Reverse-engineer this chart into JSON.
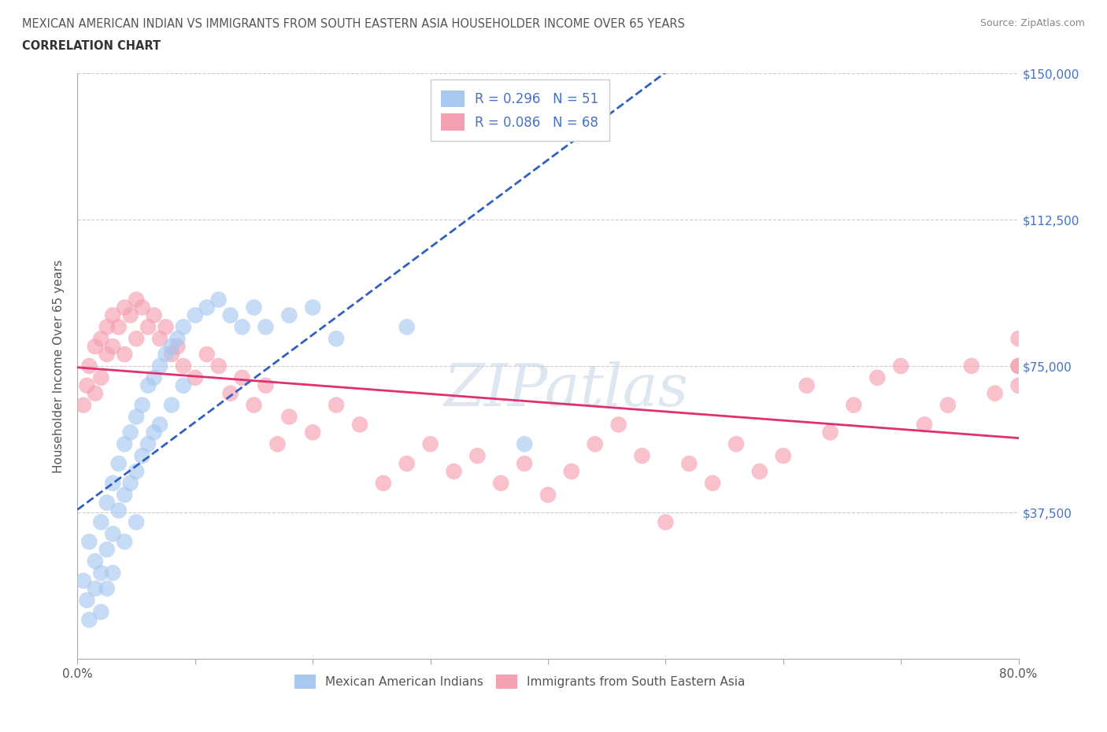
{
  "title_line1": "MEXICAN AMERICAN INDIAN VS IMMIGRANTS FROM SOUTH EASTERN ASIA HOUSEHOLDER INCOME OVER 65 YEARS",
  "title_line2": "CORRELATION CHART",
  "source": "Source: ZipAtlas.com",
  "ylabel": "Householder Income Over 65 years",
  "xlim": [
    0.0,
    0.8
  ],
  "ylim": [
    0,
    150000
  ],
  "yticks": [
    0,
    37500,
    75000,
    112500,
    150000
  ],
  "yticklabels_right": [
    "",
    "$37,500",
    "$75,000",
    "$112,500",
    "$150,000"
  ],
  "color_blue": "#a8c8f0",
  "color_pink": "#f5a0b0",
  "line_color_blue": "#3060c0",
  "line_color_pink": "#e03070",
  "watermark": "ZIPatlas",
  "blue_scatter_x": [
    0.005,
    0.008,
    0.01,
    0.01,
    0.015,
    0.015,
    0.02,
    0.02,
    0.02,
    0.025,
    0.025,
    0.025,
    0.03,
    0.03,
    0.03,
    0.035,
    0.035,
    0.04,
    0.04,
    0.04,
    0.045,
    0.045,
    0.05,
    0.05,
    0.05,
    0.055,
    0.055,
    0.06,
    0.06,
    0.065,
    0.065,
    0.07,
    0.07,
    0.075,
    0.08,
    0.08,
    0.085,
    0.09,
    0.09,
    0.1,
    0.11,
    0.12,
    0.13,
    0.14,
    0.15,
    0.16,
    0.18,
    0.2,
    0.22,
    0.28,
    0.38
  ],
  "blue_scatter_y": [
    20000,
    15000,
    30000,
    10000,
    25000,
    18000,
    35000,
    22000,
    12000,
    40000,
    28000,
    18000,
    45000,
    32000,
    22000,
    50000,
    38000,
    55000,
    42000,
    30000,
    58000,
    45000,
    62000,
    48000,
    35000,
    65000,
    52000,
    70000,
    55000,
    72000,
    58000,
    75000,
    60000,
    78000,
    80000,
    65000,
    82000,
    85000,
    70000,
    88000,
    90000,
    92000,
    88000,
    85000,
    90000,
    85000,
    88000,
    90000,
    82000,
    85000,
    55000
  ],
  "pink_scatter_x": [
    0.005,
    0.008,
    0.01,
    0.015,
    0.015,
    0.02,
    0.02,
    0.025,
    0.025,
    0.03,
    0.03,
    0.035,
    0.04,
    0.04,
    0.045,
    0.05,
    0.05,
    0.055,
    0.06,
    0.065,
    0.07,
    0.075,
    0.08,
    0.085,
    0.09,
    0.1,
    0.11,
    0.12,
    0.13,
    0.14,
    0.15,
    0.16,
    0.17,
    0.18,
    0.2,
    0.22,
    0.24,
    0.26,
    0.28,
    0.3,
    0.32,
    0.34,
    0.36,
    0.38,
    0.4,
    0.42,
    0.44,
    0.46,
    0.48,
    0.5,
    0.52,
    0.54,
    0.56,
    0.58,
    0.6,
    0.62,
    0.64,
    0.66,
    0.68,
    0.7,
    0.72,
    0.74,
    0.76,
    0.78,
    0.8,
    0.8,
    0.8,
    0.8
  ],
  "pink_scatter_y": [
    65000,
    70000,
    75000,
    80000,
    68000,
    82000,
    72000,
    85000,
    78000,
    88000,
    80000,
    85000,
    90000,
    78000,
    88000,
    92000,
    82000,
    90000,
    85000,
    88000,
    82000,
    85000,
    78000,
    80000,
    75000,
    72000,
    78000,
    75000,
    68000,
    72000,
    65000,
    70000,
    55000,
    62000,
    58000,
    65000,
    60000,
    45000,
    50000,
    55000,
    48000,
    52000,
    45000,
    50000,
    42000,
    48000,
    55000,
    60000,
    52000,
    35000,
    50000,
    45000,
    55000,
    48000,
    52000,
    70000,
    58000,
    65000,
    72000,
    75000,
    60000,
    65000,
    75000,
    68000,
    70000,
    75000,
    82000,
    75000
  ]
}
